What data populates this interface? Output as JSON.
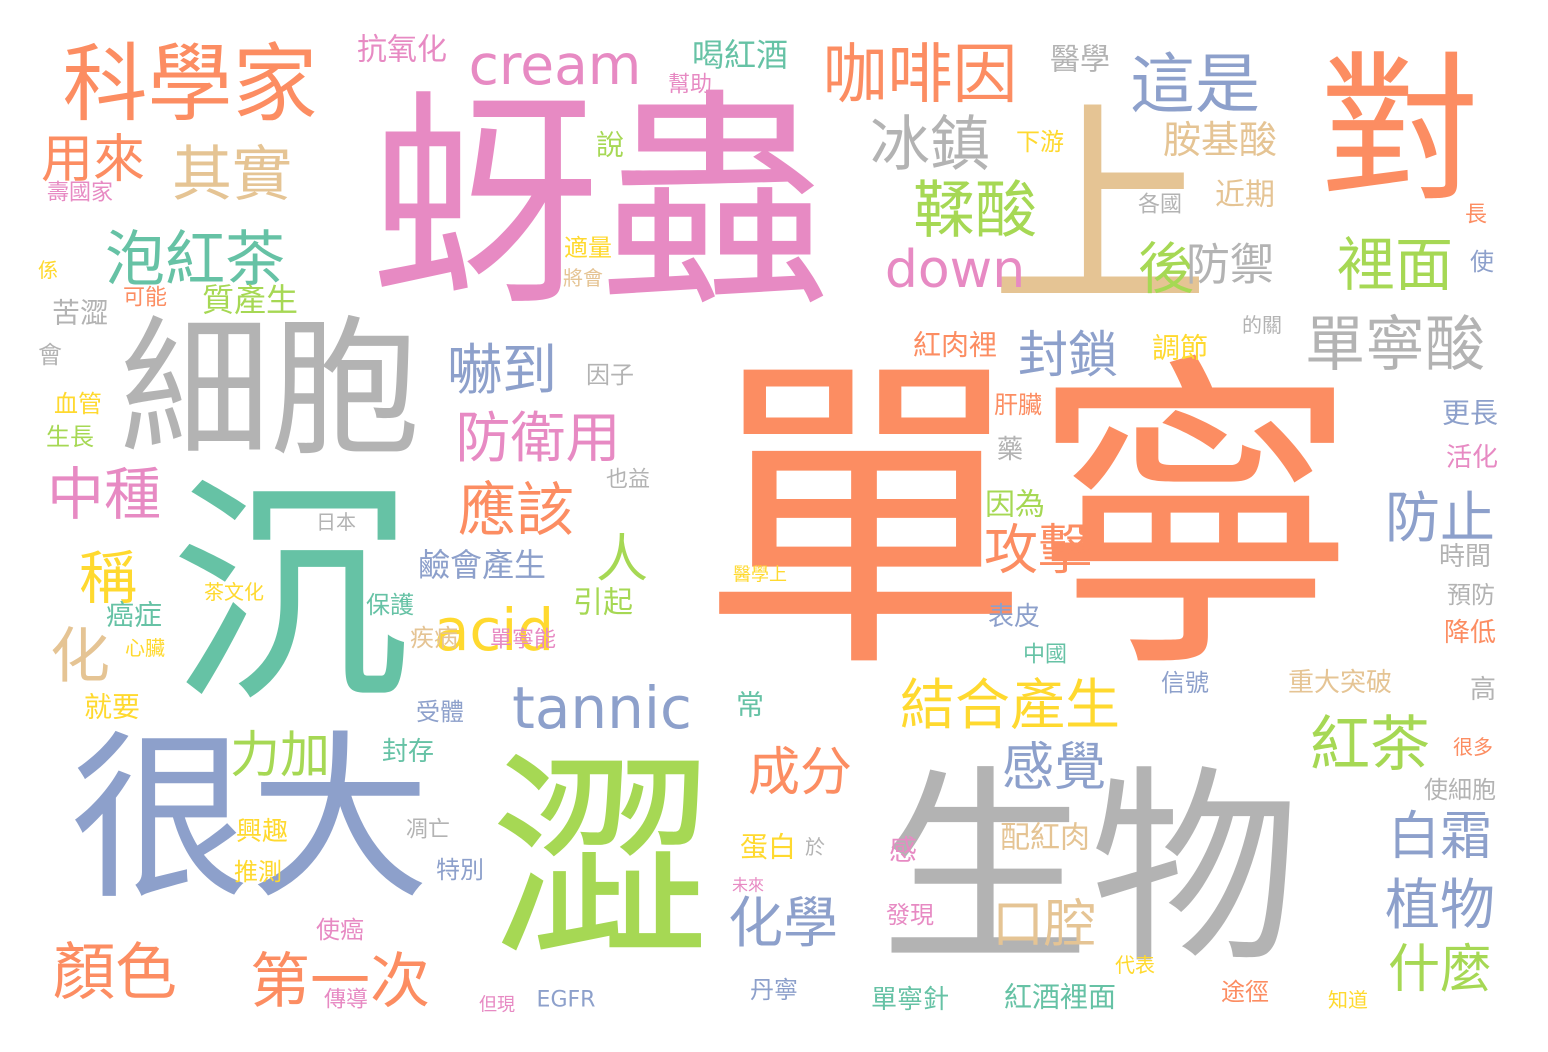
{
  "palette": {
    "orange": "#fc8d62",
    "pink": "#e78ac3",
    "gray": "#b3b3b3",
    "green": "#a6d854",
    "teal": "#66c2a5",
    "blue": "#8da0cb",
    "yellow": "#ffd92f",
    "tan": "#e5c494"
  },
  "words": [
    {
      "text": "單寧",
      "color": "orange",
      "weight": 1.0
    },
    {
      "text": "蚜蟲",
      "color": "pink",
      "weight": 0.8
    },
    {
      "text": "生物",
      "color": "gray",
      "weight": 0.75
    },
    {
      "text": "澀",
      "color": "green",
      "weight": 0.78
    },
    {
      "text": "沉",
      "color": "teal",
      "weight": 0.75
    },
    {
      "text": "很大",
      "color": "blue",
      "weight": 0.62
    },
    {
      "text": "細胞",
      "color": "gray",
      "weight": 0.55
    },
    {
      "text": "上",
      "color": "tan",
      "weight": 0.7
    },
    {
      "text": "對",
      "color": "orange",
      "weight": 0.55
    },
    {
      "text": "科學家",
      "color": "orange",
      "weight": 0.3
    },
    {
      "text": "cream",
      "color": "pink",
      "weight": 0.2
    },
    {
      "text": "咖啡因",
      "color": "orange",
      "weight": 0.22
    },
    {
      "text": "這是",
      "color": "blue",
      "weight": 0.22
    },
    {
      "text": "冰鎮",
      "color": "gray",
      "weight": 0.22
    },
    {
      "text": "鞣酸",
      "color": "green",
      "weight": 0.22
    },
    {
      "text": "其實",
      "color": "tan",
      "weight": 0.22
    },
    {
      "text": "泡紅茶",
      "color": "teal",
      "weight": 0.22
    },
    {
      "text": "用來",
      "color": "orange",
      "weight": 0.18
    },
    {
      "text": "down",
      "color": "pink",
      "weight": 0.18
    },
    {
      "text": "後",
      "color": "green",
      "weight": 0.2
    },
    {
      "text": "防禦",
      "color": "gray",
      "weight": 0.16
    },
    {
      "text": "裡面",
      "color": "green",
      "weight": 0.2
    },
    {
      "text": "單寧酸",
      "color": "gray",
      "weight": 0.22
    },
    {
      "text": "封鎖",
      "color": "blue",
      "weight": 0.18
    },
    {
      "text": "嚇到",
      "color": "blue",
      "weight": 0.2
    },
    {
      "text": "防衛用",
      "color": "pink",
      "weight": 0.2
    },
    {
      "text": "應該",
      "color": "orange",
      "weight": 0.2
    },
    {
      "text": "中種",
      "color": "pink",
      "weight": 0.2
    },
    {
      "text": "稱",
      "color": "yellow",
      "weight": 0.2
    },
    {
      "text": "人",
      "color": "green",
      "weight": 0.2
    },
    {
      "text": "防止",
      "color": "blue",
      "weight": 0.18
    },
    {
      "text": "攻擊",
      "color": "orange",
      "weight": 0.18
    },
    {
      "text": "acid",
      "color": "yellow",
      "weight": 0.2
    },
    {
      "text": "化",
      "color": "tan",
      "weight": 0.2
    },
    {
      "text": "tannic",
      "color": "blue",
      "weight": 0.2
    },
    {
      "text": "結合產生",
      "color": "yellow",
      "weight": 0.2
    },
    {
      "text": "紅茶",
      "color": "green",
      "weight": 0.2
    },
    {
      "text": "力加",
      "color": "green",
      "weight": 0.18
    },
    {
      "text": "感覺",
      "color": "blue",
      "weight": 0.18
    },
    {
      "text": "成分",
      "color": "orange",
      "weight": 0.18
    },
    {
      "text": "白霜",
      "color": "blue",
      "weight": 0.18
    },
    {
      "text": "化學",
      "color": "blue",
      "weight": 0.18
    },
    {
      "text": "植物",
      "color": "blue",
      "weight": 0.18
    },
    {
      "text": "口腔",
      "color": "tan",
      "weight": 0.18
    },
    {
      "text": "什麼",
      "color": "green",
      "weight": 0.16
    },
    {
      "text": "顏色",
      "color": "orange",
      "weight": 0.2
    },
    {
      "text": "第一次",
      "color": "orange",
      "weight": 0.2
    },
    {
      "text": "胺基酸",
      "color": "tan",
      "weight": 0.14
    },
    {
      "text": "喝紅酒",
      "color": "teal",
      "weight": 0.11
    },
    {
      "text": "抗氧化",
      "color": "pink",
      "weight": 0.11
    },
    {
      "text": "醫學",
      "color": "gray",
      "weight": 0.11
    },
    {
      "text": "幫助",
      "color": "pink",
      "weight": 0.08
    },
    {
      "text": "說",
      "color": "green",
      "weight": 0.1
    },
    {
      "text": "下游",
      "color": "yellow",
      "weight": 0.09
    },
    {
      "text": "近期",
      "color": "tan",
      "weight": 0.1
    },
    {
      "text": "各國",
      "color": "gray",
      "weight": 0.08
    },
    {
      "text": "長",
      "color": "orange",
      "weight": 0.08
    },
    {
      "text": "壽國家",
      "color": "pink",
      "weight": 0.08
    },
    {
      "text": "適量",
      "color": "yellow",
      "weight": 0.08
    },
    {
      "text": "將會",
      "color": "tan",
      "weight": 0.07
    },
    {
      "text": "使",
      "color": "blue",
      "weight": 0.08
    },
    {
      "text": "係",
      "color": "yellow",
      "weight": 0.07
    },
    {
      "text": "可能",
      "color": "orange",
      "weight": 0.07
    },
    {
      "text": "質產生",
      "color": "green",
      "weight": 0.11
    },
    {
      "text": "苦澀",
      "color": "gray",
      "weight": 0.1
    },
    {
      "text": "的關",
      "color": "gray",
      "weight": 0.06
    },
    {
      "text": "會",
      "color": "gray",
      "weight": 0.09
    },
    {
      "text": "紅肉裡",
      "color": "orange",
      "weight": 0.1
    },
    {
      "text": "調節",
      "color": "yellow",
      "weight": 0.09
    },
    {
      "text": "因子",
      "color": "gray",
      "weight": 0.09
    },
    {
      "text": "血管",
      "color": "yellow",
      "weight": 0.08
    },
    {
      "text": "生長",
      "color": "green",
      "weight": 0.08
    },
    {
      "text": "肝臟",
      "color": "orange",
      "weight": 0.08
    },
    {
      "text": "更長",
      "color": "blue",
      "weight": 0.09
    },
    {
      "text": "藥",
      "color": "gray",
      "weight": 0.09
    },
    {
      "text": "活化",
      "color": "pink",
      "weight": 0.09
    },
    {
      "text": "也益",
      "color": "gray",
      "weight": 0.08
    },
    {
      "text": "因為",
      "color": "green",
      "weight": 0.1
    },
    {
      "text": "日本",
      "color": "gray",
      "weight": 0.07
    },
    {
      "text": "鹼會產生",
      "color": "blue",
      "weight": 0.11
    },
    {
      "text": "時間",
      "color": "gray",
      "weight": 0.09
    },
    {
      "text": "醫學上",
      "color": "yellow",
      "weight": 0.07
    },
    {
      "text": "茶文化",
      "color": "yellow",
      "weight": 0.07
    },
    {
      "text": "引起",
      "color": "green",
      "weight": 0.1
    },
    {
      "text": "預防",
      "color": "gray",
      "weight": 0.08
    },
    {
      "text": "癌症",
      "color": "teal",
      "weight": 0.09
    },
    {
      "text": "保護",
      "color": "teal",
      "weight": 0.08
    },
    {
      "text": "表皮",
      "color": "blue",
      "weight": 0.09
    },
    {
      "text": "心臟",
      "color": "yellow",
      "weight": 0.07
    },
    {
      "text": "降低",
      "color": "orange",
      "weight": 0.09
    },
    {
      "text": "疾病",
      "color": "tan",
      "weight": 0.08
    },
    {
      "text": "單寧能",
      "color": "pink",
      "weight": 0.08
    },
    {
      "text": "中國",
      "color": "teal",
      "weight": 0.07
    },
    {
      "text": "信號",
      "color": "blue",
      "weight": 0.08
    },
    {
      "text": "重大突破",
      "color": "tan",
      "weight": 0.09
    },
    {
      "text": "高",
      "color": "gray",
      "weight": 0.08
    },
    {
      "text": "就要",
      "color": "yellow",
      "weight": 0.09
    },
    {
      "text": "常",
      "color": "teal",
      "weight": 0.09
    },
    {
      "text": "受體",
      "color": "blue",
      "weight": 0.08
    },
    {
      "text": "很多",
      "color": "orange",
      "weight": 0.07
    },
    {
      "text": "封存",
      "color": "teal",
      "weight": 0.09
    },
    {
      "text": "使細胞",
      "color": "gray",
      "weight": 0.08
    },
    {
      "text": "興趣",
      "color": "yellow",
      "weight": 0.09
    },
    {
      "text": "凋亡",
      "color": "gray",
      "weight": 0.08
    },
    {
      "text": "配紅肉",
      "color": "tan",
      "weight": 0.1
    },
    {
      "text": "蛋白",
      "color": "yellow",
      "weight": 0.09
    },
    {
      "text": "於",
      "color": "gray",
      "weight": 0.07
    },
    {
      "text": "推測",
      "color": "yellow",
      "weight": 0.08
    },
    {
      "text": "特別",
      "color": "blue",
      "weight": 0.08
    },
    {
      "text": "感",
      "color": "pink",
      "weight": 0.1
    },
    {
      "text": "未來",
      "color": "pink",
      "weight": 0.06
    },
    {
      "text": "使癌",
      "color": "pink",
      "weight": 0.08
    },
    {
      "text": "發現",
      "color": "pink",
      "weight": 0.08
    },
    {
      "text": "代表",
      "color": "yellow",
      "weight": 0.07
    },
    {
      "text": "丹寧",
      "color": "blue",
      "weight": 0.08
    },
    {
      "text": "傳導",
      "color": "pink",
      "weight": 0.08
    },
    {
      "text": "但現",
      "color": "pink",
      "weight": 0.06
    },
    {
      "text": "EGFR",
      "color": "blue",
      "weight": 0.08
    },
    {
      "text": "單寧針",
      "color": "teal",
      "weight": 0.09
    },
    {
      "text": "紅酒裡面",
      "color": "teal",
      "weight": 0.1
    },
    {
      "text": "途徑",
      "color": "orange",
      "weight": 0.08
    },
    {
      "text": "知道",
      "color": "yellow",
      "weight": 0.06
    }
  ]
}
